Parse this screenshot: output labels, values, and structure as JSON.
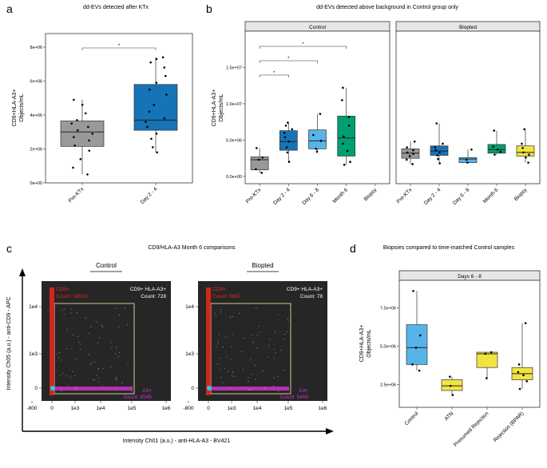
{
  "colors": {
    "grey": "#999999",
    "blue_dark": "#1573b6",
    "blue_light": "#56b4e9",
    "green": "#009e73",
    "yellow": "#f0e442",
    "flow_bg": "#262626",
    "gate": "#e8d9a0",
    "cd9_red": "#e0281e",
    "a3_magenta": "#cc33cc",
    "cyan": "#36c6e0"
  },
  "labels": {
    "a": "a",
    "b": "b",
    "c": "c",
    "d": "d"
  },
  "flow": {
    "title": "CD9/HLA-A3 Month 6 comparisons",
    "ylabel": "Intensity Ch05 (a.u.) - anti-CD9 - APC",
    "xlabel": "Intensity Ch01 (a.u.) - anti-HLA-A3 - BV421",
    "xticks": [
      "-800",
      "0",
      "1e3",
      "1e4",
      "1e5",
      "1e6"
    ],
    "yticks": [
      "1e4",
      "1e3",
      "0"
    ],
    "panels": [
      {
        "name": "Control",
        "cd9_label": "CD9+",
        "cd9_count": "Count: 14516",
        "dp_label": "CD9+ HLA-A3+",
        "dp_count": "Count: 728",
        "a3_label": "A3+",
        "a3_count": "Count: 8545"
      },
      {
        "name": "Biopted",
        "cd9_label": "CD9+",
        "cd9_count": "Count: 9697",
        "dp_label": "CD9+ HLA-A3+",
        "dp_count": "Count: 78",
        "a3_label": "A3+",
        "a3_count": "Count: 5469"
      }
    ]
  },
  "chart_data": [
    {
      "type": "box",
      "panel": "a",
      "title": "dd-EVs detected after KTx",
      "ylabel": "CD9+HLA-A3+\nObjects/mL",
      "ylim": [
        0,
        8800000
      ],
      "yticks": [
        "0e+00",
        "2e+06",
        "4e+06",
        "6e+06",
        "8e+06"
      ],
      "categories": [
        "Pre-KTx",
        "Day 2 - 4"
      ],
      "series": [
        {
          "color": "#999999",
          "q1": 2150000,
          "median": 3000000,
          "q3": 3650000,
          "whisker_low": 500000,
          "whisker_high": 4900000,
          "points": [
            500000,
            900000,
            1400000,
            1900000,
            2200000,
            2500000,
            2700000,
            2900000,
            3100000,
            3300000,
            3500000,
            3700000,
            4100000,
            4600000,
            4900000
          ]
        },
        {
          "color": "#1573b6",
          "q1": 3100000,
          "median": 3700000,
          "q3": 5800000,
          "whisker_low": 1800000,
          "whisker_high": 7400000,
          "points": [
            1800000,
            2100000,
            2600000,
            2900000,
            3300000,
            3600000,
            3800000,
            4200000,
            4600000,
            5200000,
            5500000,
            5900000,
            6300000,
            6800000,
            7100000,
            7300000,
            7400000
          ]
        }
      ],
      "significance": [
        {
          "from": 0,
          "to": 1,
          "label": "*"
        }
      ]
    },
    {
      "type": "box",
      "panel": "b",
      "title": "dd-EVs detected above background in Control group only",
      "ylabel": "CD9+HLA-A3+\nObjects/mL",
      "ylim": [
        -1000000,
        20000000
      ],
      "yticks": [
        "0.0e+00",
        "5.0e+06",
        "1.0e+07",
        "1.5e+07"
      ],
      "facets": [
        {
          "name": "Control",
          "categories": [
            "Pre-KTx",
            "Day 2 - 4",
            "Day 6 - 8",
            "Month 6",
            "Biopsy"
          ],
          "series": [
            {
              "color": "#999999",
              "q1": 900000,
              "median": 2300000,
              "q3": 2700000,
              "whisker_low": 500000,
              "whisker_high": 3900000,
              "points": [
                500000,
                1000000,
                2300000,
                2600000,
                3900000
              ]
            },
            {
              "color": "#1573b6",
              "q1": 3600000,
              "median": 4800000,
              "q3": 6300000,
              "whisker_low": 2000000,
              "whisker_high": 7400000,
              "points": [
                2000000,
                3300000,
                4000000,
                4800000,
                5400000,
                6000000,
                6500000,
                7000000,
                7400000
              ]
            },
            {
              "color": "#56b4e9",
              "q1": 3800000,
              "median": 4900000,
              "q3": 6400000,
              "whisker_low": 3400000,
              "whisker_high": 8600000,
              "points": [
                3400000,
                3800000,
                4900000,
                5700000,
                8600000
              ]
            },
            {
              "color": "#009e73",
              "q1": 2800000,
              "median": 5300000,
              "q3": 8300000,
              "whisker_low": 1600000,
              "whisker_high": 12200000,
              "points": [
                1600000,
                2000000,
                3500000,
                4500000,
                5500000,
                7000000,
                8200000,
                10500000,
                12200000
              ]
            },
            null
          ],
          "significance": [
            {
              "from": 0,
              "to": 1,
              "label": "*"
            },
            {
              "from": 0,
              "to": 2,
              "label": "*"
            },
            {
              "from": 0,
              "to": 3,
              "label": "*"
            }
          ]
        },
        {
          "name": "Biopted",
          "categories": [
            "Pre-KTx",
            "Day 2 - 4",
            "Day 6 - 8",
            "Month 6",
            "Biopsy"
          ],
          "series": [
            {
              "color": "#999999",
              "q1": 2500000,
              "median": 3200000,
              "q3": 3800000,
              "whisker_low": 1700000,
              "whisker_high": 4800000,
              "points": [
                1700000,
                2300000,
                2800000,
                3100000,
                3300000,
                3600000,
                4000000,
                4800000
              ]
            },
            {
              "color": "#1573b6",
              "q1": 2900000,
              "median": 3500000,
              "q3": 4200000,
              "whisker_low": 1800000,
              "whisker_high": 7300000,
              "points": [
                1800000,
                2400000,
                2900000,
                3300000,
                3600000,
                4000000,
                4500000,
                7300000
              ]
            },
            {
              "color": "#56b4e9",
              "q1": 1900000,
              "median": 2400000,
              "q3": 2600000,
              "whisker_low": 1900000,
              "whisker_high": 3700000,
              "points": [
                1900000,
                2300000,
                3700000
              ]
            },
            {
              "color": "#009e73",
              "q1": 3200000,
              "median": 3700000,
              "q3": 4400000,
              "whisker_low": 3000000,
              "whisker_high": 6300000,
              "points": [
                3000000,
                3400000,
                3700000,
                4100000,
                6300000
              ]
            },
            {
              "color": "#f0e442",
              "q1": 2800000,
              "median": 3300000,
              "q3": 4200000,
              "whisker_low": 1900000,
              "whisker_high": 6500000,
              "points": [
                1900000,
                2600000,
                3000000,
                3300000,
                3900000,
                4500000,
                6500000
              ]
            }
          ]
        }
      ]
    },
    {
      "type": "box",
      "panel": "d",
      "title": "Biopsies compared to time-matched Control samples",
      "facet": "Days 6 - 8",
      "ylabel": "CD9+HLA-A3+\nObjects/mL",
      "ylim": [
        1000000,
        9300000
      ],
      "yticks": [
        "2.5e+06",
        "5.0e+06",
        "7.5e+06"
      ],
      "categories": [
        "Control",
        "ATN",
        "Presumed Rejection",
        "Rejection (BPAR)"
      ],
      "series": [
        {
          "color": "#56b4e9",
          "q1": 3800000,
          "median": 4900000,
          "q3": 6400000,
          "whisker_low": 3400000,
          "whisker_high": 8600000,
          "points": [
            3400000,
            3800000,
            4900000,
            5700000,
            8600000
          ]
        },
        {
          "color": "#f0e442",
          "q1": 2100000,
          "median": 2400000,
          "q3": 2800000,
          "whisker_low": 1800000,
          "whisker_high": 3000000,
          "points": [
            1800000,
            2400000,
            3000000
          ]
        },
        {
          "color": "#f0e442",
          "q1": 3600000,
          "median": 4500000,
          "q3": 4600000,
          "whisker_low": 2900000,
          "whisker_high": 4600000,
          "points": [
            2900000,
            4500000,
            4600000
          ]
        },
        {
          "color": "#f0e442",
          "q1": 2800000,
          "median": 3200000,
          "q3": 3600000,
          "whisker_low": 2200000,
          "whisker_high": 6500000,
          "points": [
            2200000,
            2700000,
            3100000,
            3300000,
            3800000,
            6500000
          ]
        }
      ]
    }
  ]
}
